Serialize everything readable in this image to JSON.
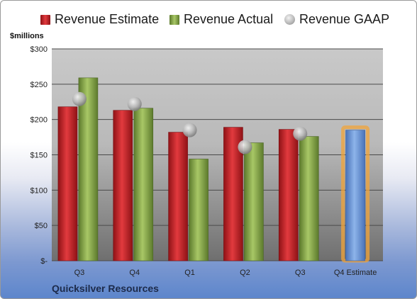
{
  "legend": {
    "items": [
      {
        "label": "Revenue Estimate",
        "icon": "red-square-icon",
        "color": "#c8252a"
      },
      {
        "label": "Revenue Actual",
        "icon": "green-square-icon",
        "color": "#8fb050"
      },
      {
        "label": "Revenue GAAP",
        "icon": "gray-circle-icon",
        "color": "#b0b0b0"
      }
    ]
  },
  "unit_label": "$millions",
  "company": "Quicksilver Resources",
  "chart_data": {
    "type": "bar",
    "categories": [
      "Q3",
      "Q4",
      "Q1",
      "Q2",
      "Q3",
      "Q4 Estimate"
    ],
    "ylim": [
      0,
      300
    ],
    "yticks": [
      {
        "value": 0,
        "label": "$-"
      },
      {
        "value": 50,
        "label": "$50"
      },
      {
        "value": 100,
        "label": "$100"
      },
      {
        "value": 150,
        "label": "$150"
      },
      {
        "value": 200,
        "label": "$200"
      },
      {
        "value": 250,
        "label": "$250"
      },
      {
        "value": 300,
        "label": "$300"
      }
    ],
    "grid": true,
    "legend_position": "top",
    "series": [
      {
        "name": "Revenue Estimate",
        "type": "bar",
        "color": "#c8252a",
        "values": [
          218,
          213,
          182,
          189,
          186,
          null
        ]
      },
      {
        "name": "Revenue Actual",
        "type": "bar",
        "color": "#8fb050",
        "values": [
          259,
          216,
          144,
          167,
          176,
          null
        ]
      },
      {
        "name": "Revenue GAAP",
        "type": "marker",
        "color": "#b0b0b0",
        "values": [
          229,
          222,
          185,
          161,
          180,
          null
        ]
      },
      {
        "name": "Q4 Estimate",
        "type": "bar",
        "color": "#6f9ad8",
        "highlight": "#f2a43a",
        "values": [
          null,
          null,
          null,
          null,
          null,
          185
        ]
      }
    ]
  }
}
